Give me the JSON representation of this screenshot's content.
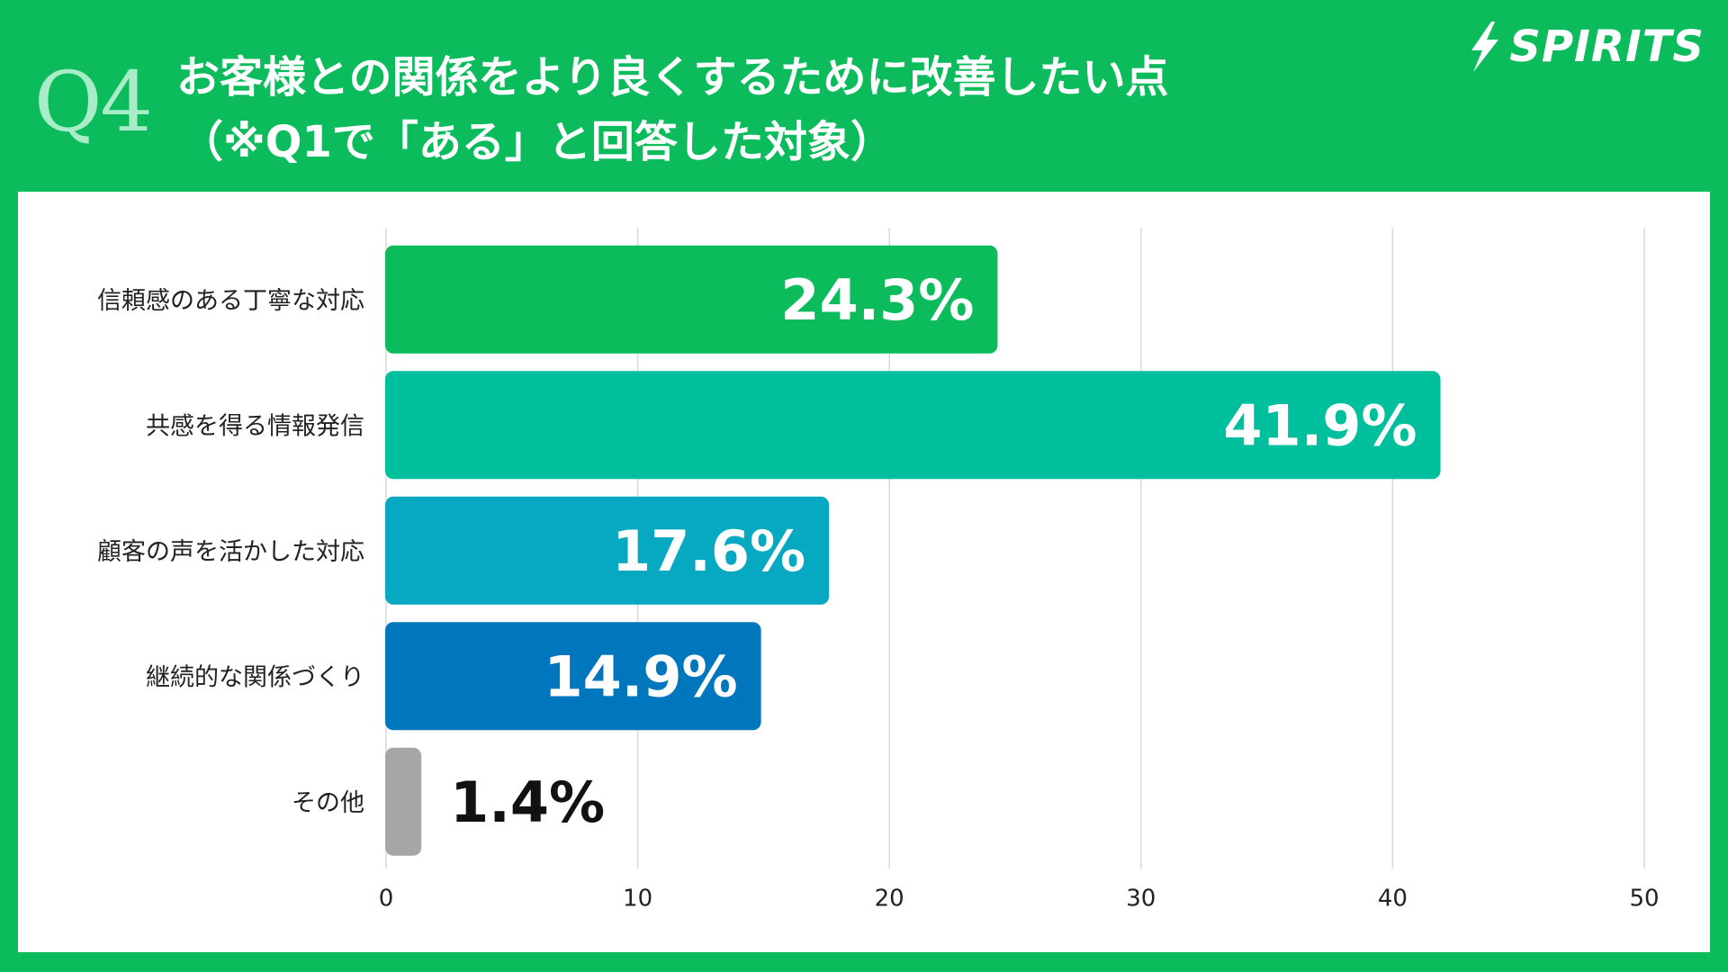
{
  "header": {
    "question_number": "Q4",
    "title_line1": "お客様との関係をより良くするために改善したい点",
    "title_line2": "（※Q1で「ある」と回答した対象）"
  },
  "logo": {
    "text": "SPIRITS",
    "icon": "lightning-icon"
  },
  "colors": {
    "frame": "#0cbc5c",
    "panel": "#ffffff",
    "grid": "#d9d9d9"
  },
  "chart_data": {
    "type": "bar",
    "orientation": "horizontal",
    "title": "お客様との関係をより良くするために改善したい点",
    "categories": [
      "信頼感のある丁寧な対応",
      "共感を得る情報発信",
      "顧客の声を活かした対応",
      "継続的な関係づくり",
      "その他"
    ],
    "values": [
      24.3,
      41.9,
      17.6,
      14.9,
      1.4
    ],
    "value_labels": [
      "24.3%",
      "41.9%",
      "17.6%",
      "14.9%",
      "1.4%"
    ],
    "bar_colors": [
      "#0cbc5c",
      "#00bf9c",
      "#06a9c1",
      "#0077bd",
      "#a6a6a6"
    ],
    "label_colors": [
      "#ffffff",
      "#ffffff",
      "#ffffff",
      "#ffffff",
      "#111111"
    ],
    "xlim": [
      0,
      50
    ],
    "ticks": [
      "0",
      "10",
      "20",
      "30",
      "40",
      "50"
    ],
    "grid": true,
    "xlabel": "",
    "ylabel": ""
  }
}
